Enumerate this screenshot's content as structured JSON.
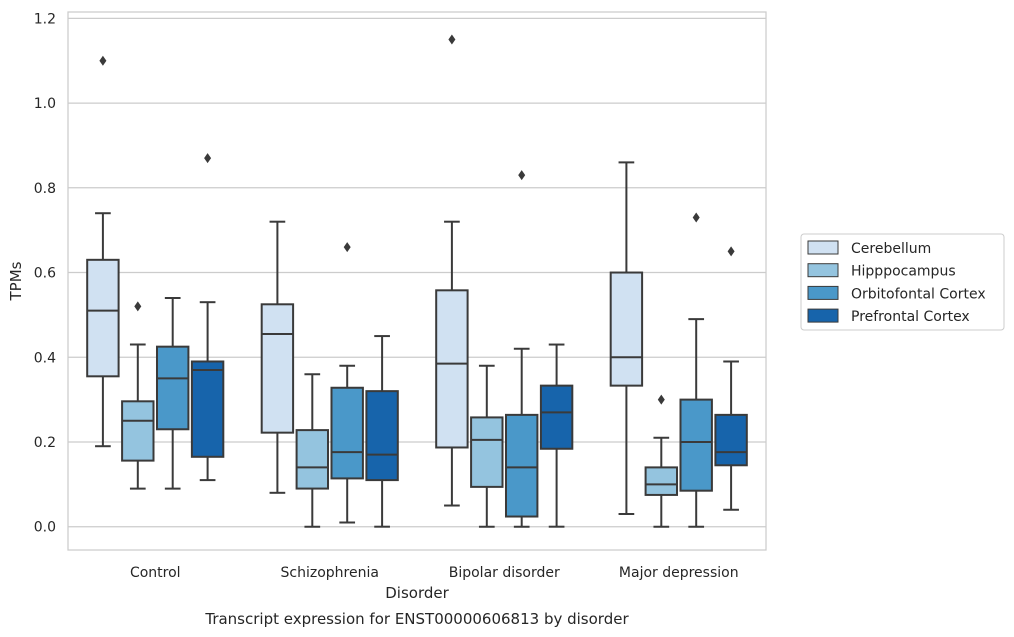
{
  "chart_data": {
    "type": "box",
    "caption": "Transcript expression for ENST00000606813 by disorder",
    "xlabel": "Disorder",
    "ylabel": "TPMs",
    "ylim": [
      -0.055,
      1.215
    ],
    "yticks": [
      "0.0",
      "0.2",
      "0.4",
      "0.6",
      "0.8",
      "1.0",
      "1.2"
    ],
    "ytick_values": [
      0.0,
      0.2,
      0.4,
      0.6,
      0.8,
      1.0,
      1.2
    ],
    "grid": "horizontal",
    "legend_position": "right",
    "categories": [
      "Control",
      "Schizophrenia",
      "Bipolar disorder",
      "Major depression"
    ],
    "series": [
      {
        "name": "Cerebellum",
        "color": "#d0e1f2",
        "boxes": [
          {
            "whisker_low": 0.19,
            "q1": 0.355,
            "median": 0.51,
            "q3": 0.63,
            "whisker_high": 0.74,
            "outliers": [
              1.1
            ]
          },
          {
            "whisker_low": 0.08,
            "q1": 0.222,
            "median": 0.455,
            "q3": 0.525,
            "whisker_high": 0.72,
            "outliers": []
          },
          {
            "whisker_low": 0.05,
            "q1": 0.187,
            "median": 0.385,
            "q3": 0.558,
            "whisker_high": 0.72,
            "outliers": [
              1.15
            ]
          },
          {
            "whisker_low": 0.03,
            "q1": 0.333,
            "median": 0.4,
            "q3": 0.6,
            "whisker_high": 0.86,
            "outliers": []
          }
        ]
      },
      {
        "name": "Hipppocampus",
        "color": "#94c4df",
        "boxes": [
          {
            "whisker_low": 0.09,
            "q1": 0.156,
            "median": 0.25,
            "q3": 0.296,
            "whisker_high": 0.43,
            "outliers": [
              0.52
            ]
          },
          {
            "whisker_low": 0.0,
            "q1": 0.09,
            "median": 0.14,
            "q3": 0.228,
            "whisker_high": 0.36,
            "outliers": []
          },
          {
            "whisker_low": 0.0,
            "q1": 0.094,
            "median": 0.205,
            "q3": 0.258,
            "whisker_high": 0.38,
            "outliers": []
          },
          {
            "whisker_low": 0.0,
            "q1": 0.075,
            "median": 0.1,
            "q3": 0.14,
            "whisker_high": 0.21,
            "outliers": [
              0.3
            ]
          }
        ]
      },
      {
        "name": "Orbitofontal Cortex",
        "color": "#4a98c9",
        "boxes": [
          {
            "whisker_low": 0.09,
            "q1": 0.23,
            "median": 0.35,
            "q3": 0.425,
            "whisker_high": 0.54,
            "outliers": []
          },
          {
            "whisker_low": 0.01,
            "q1": 0.114,
            "median": 0.176,
            "q3": 0.328,
            "whisker_high": 0.38,
            "outliers": [
              0.66
            ]
          },
          {
            "whisker_low": 0.0,
            "q1": 0.024,
            "median": 0.14,
            "q3": 0.264,
            "whisker_high": 0.42,
            "outliers": [
              0.83
            ]
          },
          {
            "whisker_low": 0.0,
            "q1": 0.085,
            "median": 0.2,
            "q3": 0.3,
            "whisker_high": 0.49,
            "outliers": [
              0.73
            ]
          }
        ]
      },
      {
        "name": "Prefrontal Cortex",
        "color": "#1764ab",
        "boxes": [
          {
            "whisker_low": 0.11,
            "q1": 0.165,
            "median": 0.37,
            "q3": 0.39,
            "whisker_high": 0.53,
            "outliers": [
              0.87
            ]
          },
          {
            "whisker_low": 0.0,
            "q1": 0.11,
            "median": 0.17,
            "q3": 0.32,
            "whisker_high": 0.45,
            "outliers": []
          },
          {
            "whisker_low": 0.0,
            "q1": 0.184,
            "median": 0.27,
            "q3": 0.333,
            "whisker_high": 0.43,
            "outliers": []
          },
          {
            "whisker_low": 0.04,
            "q1": 0.145,
            "median": 0.176,
            "q3": 0.264,
            "whisker_high": 0.39,
            "outliers": [
              0.65
            ]
          }
        ]
      }
    ]
  }
}
